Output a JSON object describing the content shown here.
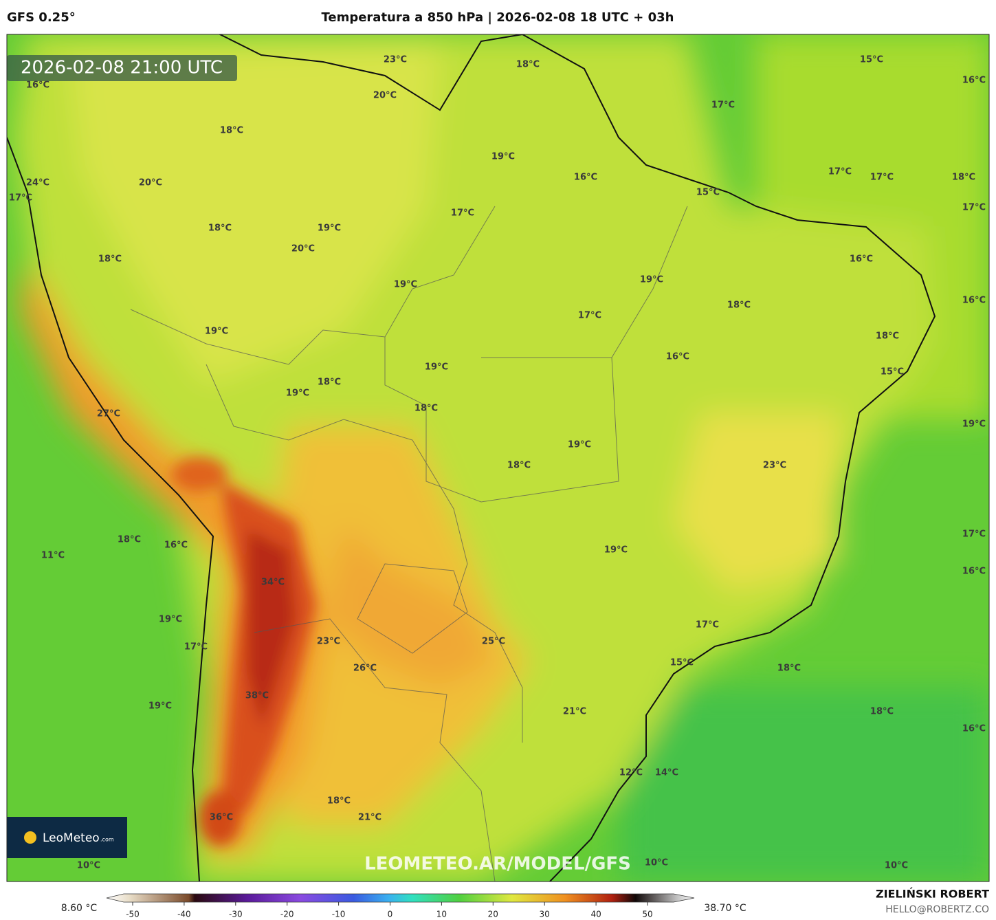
{
  "header": {
    "model": "GFS 0.25°",
    "title": "Temperatura a 850 hPa | 2026-02-08 18 UTC + 03h"
  },
  "map": {
    "timestamp": "2026-02-08 21:00 UTC",
    "labels": [
      "23°C",
      "18°C",
      "15°C",
      "16°C",
      "16°C",
      "20°C",
      "17°C",
      "18°C",
      "19°C",
      "17°C",
      "17°C",
      "18°C",
      "16°C",
      "15°C",
      "24°C",
      "17°C",
      "20°C",
      "17°C",
      "17°C",
      "18°C",
      "19°C",
      "20°C",
      "18°C",
      "16°C",
      "19°C",
      "19°C",
      "16°C",
      "18°C",
      "17°C",
      "19°C",
      "18°C",
      "16°C",
      "19°C",
      "15°C",
      "18°C",
      "19°C",
      "18°C",
      "27°C",
      "19°C",
      "19°C",
      "18°C",
      "23°C",
      "17°C",
      "18°C",
      "16°C",
      "11°C",
      "19°C",
      "16°C",
      "34°C",
      "19°C",
      "17°C",
      "17°C",
      "23°C",
      "25°C",
      "15°C",
      "26°C",
      "18°C",
      "38°C",
      "19°C",
      "21°C",
      "18°C",
      "16°C",
      "12°C",
      "14°C",
      "18°C",
      "21°C",
      "36°C",
      "10°C",
      "10°C",
      "10°C"
    ],
    "watermark": "LEOMETEO.AR/MODEL/GFS",
    "logo": {
      "name": "LeoMeteo",
      "suffix": ".com"
    }
  },
  "colorbar": {
    "min_label": "8.60 °C",
    "max_label": "38.70 °C",
    "ticks": [
      -50,
      -40,
      -30,
      -20,
      -10,
      0,
      10,
      20,
      30,
      40,
      50
    ]
  },
  "credits": {
    "author": "ZIELIŃSKI ROBERT",
    "email": "HELLO@ROBERTZ.CO"
  }
}
